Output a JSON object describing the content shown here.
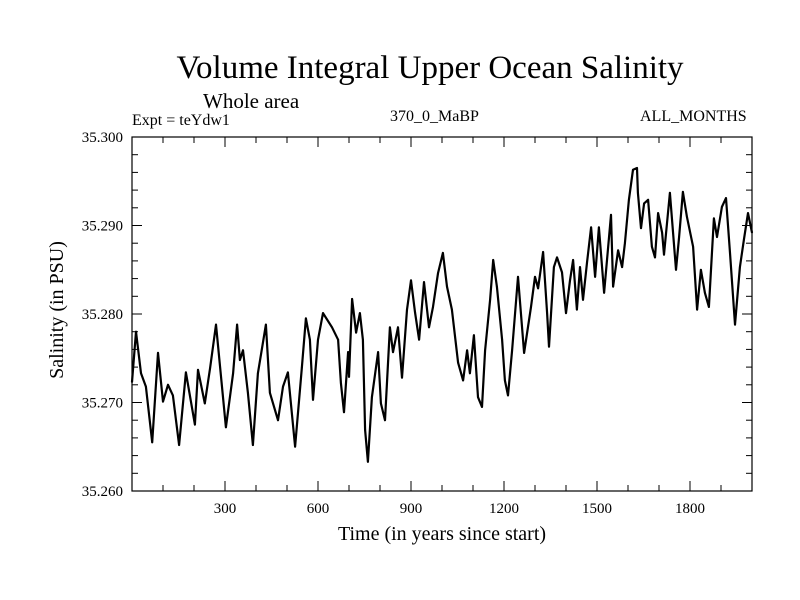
{
  "header": {
    "title": "Volume Integral Upper Ocean Salinity",
    "subtitle": "Whole area",
    "experiment": "Expt = teYdw1",
    "period": "370_0_MaBP",
    "months": "ALL_MONTHS"
  },
  "chart_data": {
    "type": "line",
    "title": "Volume Integral Upper Ocean Salinity",
    "subtitle": "Whole area",
    "xlabel": "Time (in years since start)",
    "ylabel": "Salinity (in PSU)",
    "xlim": [
      0,
      2000
    ],
    "ylim": [
      35.26,
      35.3
    ],
    "x_ticks": [
      300,
      600,
      900,
      1200,
      1500,
      1800
    ],
    "x_tick_labels": [
      "300",
      "600",
      "900",
      "1200",
      "1500",
      "1800"
    ],
    "x_minor_step": 100,
    "y_ticks": [
      35.26,
      35.27,
      35.28,
      35.29,
      35.3
    ],
    "y_tick_labels": [
      "35.260",
      "35.270",
      "35.280",
      "35.290",
      "35.300"
    ],
    "y_minor_step": 0.002,
    "grid": false,
    "legend": "none",
    "annotations": [
      "Expt = teYdw1",
      "370_0_MaBP",
      "ALL_MONTHS"
    ],
    "series": [
      {
        "name": "Salinity",
        "color": "#000000",
        "x": [
          0,
          13,
          29,
          45,
          65,
          84,
          100,
          116,
          132,
          152,
          174,
          203,
          213,
          235,
          252,
          271,
          303,
          326,
          339,
          348,
          358,
          374,
          390,
          406,
          432,
          445,
          471,
          487,
          503,
          526,
          548,
          561,
          574,
          584,
          600,
          616,
          645,
          665,
          674,
          684,
          697,
          700,
          710,
          723,
          735,
          745,
          752,
          761,
          774,
          794,
          803,
          816,
          832,
          842,
          858,
          871,
          887,
          900,
          913,
          926,
          942,
          958,
          971,
          987,
          1003,
          1016,
          1032,
          1052,
          1068,
          1081,
          1090,
          1103,
          1116,
          1129,
          1139,
          1155,
          1165,
          1177,
          1194,
          1203,
          1213,
          1226,
          1245,
          1265,
          1287,
          1300,
          1310,
          1326,
          1339,
          1345,
          1361,
          1371,
          1387,
          1400,
          1413,
          1423,
          1435,
          1445,
          1455,
          1468,
          1481,
          1494,
          1506,
          1523,
          1545,
          1552,
          1568,
          1581,
          1590,
          1603,
          1616,
          1629,
          1632,
          1642,
          1652,
          1665,
          1677,
          1687,
          1697,
          1710,
          1716,
          1735,
          1755,
          1765,
          1777,
          1790,
          1810,
          1823,
          1835,
          1848,
          1861,
          1877,
          1887,
          1903,
          1916,
          1929,
          1945,
          1961,
          1974,
          1987,
          2000
        ],
        "values": [
          35.2723,
          35.278,
          35.2733,
          35.2718,
          35.2655,
          35.2756,
          35.2701,
          35.272,
          35.2708,
          35.2652,
          35.2734,
          35.2675,
          35.2737,
          35.2699,
          35.2739,
          35.2788,
          35.2672,
          35.2733,
          35.2788,
          35.2748,
          35.2759,
          35.2711,
          35.2652,
          35.2733,
          35.2788,
          35.2711,
          35.268,
          35.2718,
          35.2734,
          35.265,
          35.274,
          35.2795,
          35.2771,
          35.2703,
          35.2771,
          35.2801,
          35.2785,
          35.2771,
          35.2722,
          35.2689,
          35.2757,
          35.2729,
          35.2817,
          35.2779,
          35.2801,
          35.2771,
          35.2669,
          35.2633,
          35.2706,
          35.2757,
          35.2699,
          35.268,
          35.2785,
          35.2757,
          35.2785,
          35.2728,
          35.2805,
          35.2838,
          35.2802,
          35.2771,
          35.2836,
          35.2785,
          35.2808,
          35.2846,
          35.2869,
          35.2831,
          35.2805,
          35.2745,
          35.2725,
          35.2759,
          35.2733,
          35.2776,
          35.2706,
          35.2695,
          35.2759,
          35.2816,
          35.2861,
          35.2831,
          35.2771,
          35.2725,
          35.2708,
          35.2759,
          35.2842,
          35.2756,
          35.2808,
          35.2842,
          35.2829,
          35.287,
          35.2801,
          35.2763,
          35.2853,
          35.2864,
          35.2847,
          35.2801,
          35.2838,
          35.2861,
          35.2805,
          35.2853,
          35.2816,
          35.2859,
          35.2898,
          35.2842,
          35.2898,
          35.2824,
          35.2912,
          35.2831,
          35.2872,
          35.2853,
          35.288,
          35.2929,
          35.2963,
          35.2965,
          35.2937,
          35.2897,
          35.2925,
          35.2929,
          35.2876,
          35.2864,
          35.2914,
          35.2892,
          35.2867,
          35.2937,
          35.285,
          35.2887,
          35.2938,
          35.291,
          35.2876,
          35.2805,
          35.285,
          35.2824,
          35.2808,
          35.2908,
          35.2887,
          35.2921,
          35.2931,
          35.2869,
          35.2788,
          35.2853,
          35.2884,
          35.2914,
          35.2892
        ]
      }
    ]
  }
}
